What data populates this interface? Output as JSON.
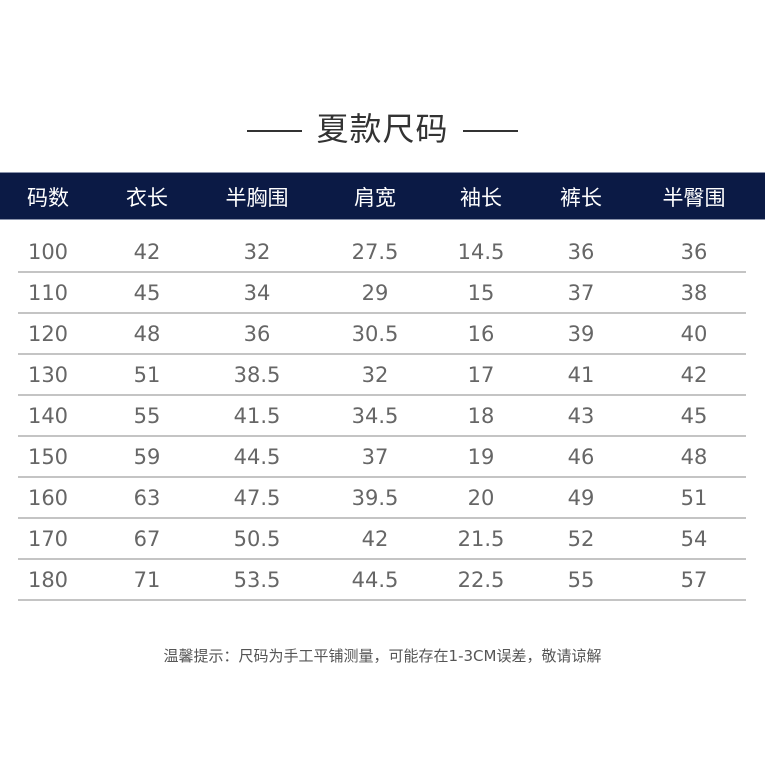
{
  "title": "夏款尺码",
  "columns": [
    "码数",
    "衣长",
    "半胸围",
    "肩宽",
    "袖长",
    "裤长",
    "半臀围"
  ],
  "rows": [
    [
      "100",
      "42",
      "32",
      "27.5",
      "14.5",
      "36",
      "36"
    ],
    [
      "110",
      "45",
      "34",
      "29",
      "15",
      "37",
      "38"
    ],
    [
      "120",
      "48",
      "36",
      "30.5",
      "16",
      "39",
      "40"
    ],
    [
      "130",
      "51",
      "38.5",
      "32",
      "17",
      "41",
      "42"
    ],
    [
      "140",
      "55",
      "41.5",
      "34.5",
      "18",
      "43",
      "45"
    ],
    [
      "150",
      "59",
      "44.5",
      "37",
      "19",
      "46",
      "48"
    ],
    [
      "160",
      "63",
      "47.5",
      "39.5",
      "20",
      "49",
      "51"
    ],
    [
      "170",
      "67",
      "50.5",
      "42",
      "21.5",
      "52",
      "54"
    ],
    [
      "180",
      "71",
      "53.5",
      "44.5",
      "22.5",
      "55",
      "57"
    ]
  ],
  "note": "温馨提示：尺码为手工平铺测量，可能存在1-3CM误差，敬请谅解",
  "colors": {
    "header_bg": "#0b1a45",
    "header_text": "#ffffff",
    "body_text": "#666666"
  }
}
